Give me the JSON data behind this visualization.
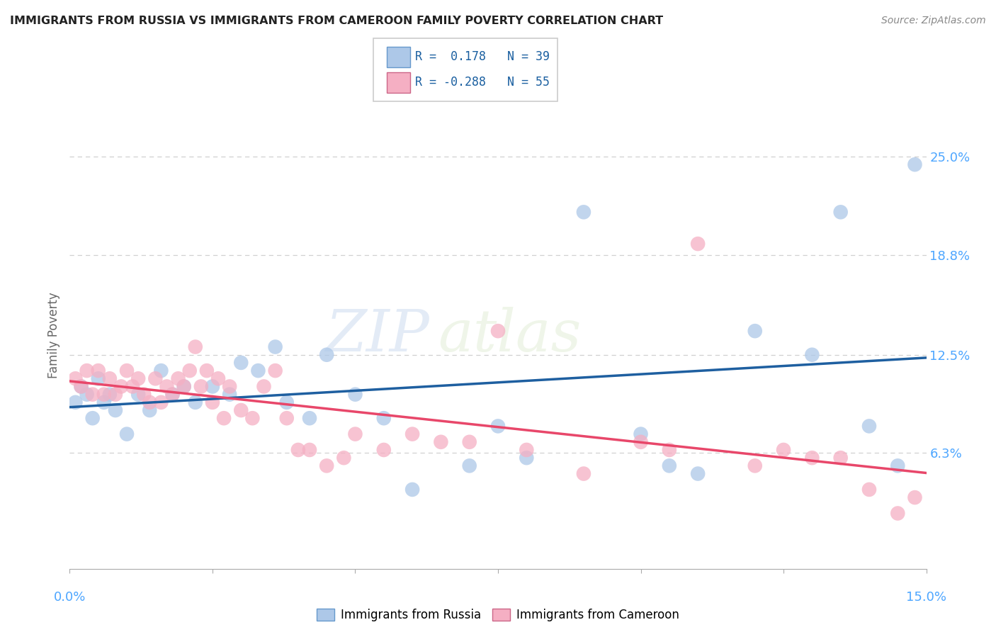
{
  "title": "IMMIGRANTS FROM RUSSIA VS IMMIGRANTS FROM CAMEROON FAMILY POVERTY CORRELATION CHART",
  "source": "Source: ZipAtlas.com",
  "ylabel": "Family Poverty",
  "ytick_labels": [
    "25.0%",
    "18.8%",
    "12.5%",
    "6.3%"
  ],
  "ytick_values": [
    0.25,
    0.188,
    0.125,
    0.063
  ],
  "xlim": [
    0.0,
    0.15
  ],
  "ylim": [
    -0.01,
    0.285
  ],
  "russia_R": 0.178,
  "russia_N": 39,
  "cameroon_R": -0.288,
  "cameroon_N": 55,
  "russia_color": "#adc8e8",
  "cameroon_color": "#f5afc3",
  "russia_line_color": "#1e5fa0",
  "cameroon_line_color": "#e8476a",
  "legend_label_russia": "Immigrants from Russia",
  "legend_label_cameroon": "Immigrants from Cameroon",
  "russia_scatter_x": [
    0.001,
    0.002,
    0.003,
    0.004,
    0.005,
    0.006,
    0.007,
    0.008,
    0.01,
    0.012,
    0.014,
    0.016,
    0.018,
    0.02,
    0.022,
    0.025,
    0.028,
    0.03,
    0.033,
    0.036,
    0.038,
    0.042,
    0.045,
    0.05,
    0.055,
    0.06,
    0.07,
    0.075,
    0.08,
    0.09,
    0.1,
    0.105,
    0.11,
    0.12,
    0.13,
    0.135,
    0.14,
    0.145,
    0.148
  ],
  "russia_scatter_y": [
    0.095,
    0.105,
    0.1,
    0.085,
    0.11,
    0.095,
    0.1,
    0.09,
    0.075,
    0.1,
    0.09,
    0.115,
    0.1,
    0.105,
    0.095,
    0.105,
    0.1,
    0.12,
    0.115,
    0.13,
    0.095,
    0.085,
    0.125,
    0.1,
    0.085,
    0.04,
    0.055,
    0.08,
    0.06,
    0.215,
    0.075,
    0.055,
    0.05,
    0.14,
    0.125,
    0.215,
    0.08,
    0.055,
    0.245
  ],
  "cameroon_scatter_x": [
    0.001,
    0.002,
    0.003,
    0.004,
    0.005,
    0.006,
    0.007,
    0.008,
    0.009,
    0.01,
    0.011,
    0.012,
    0.013,
    0.014,
    0.015,
    0.016,
    0.017,
    0.018,
    0.019,
    0.02,
    0.021,
    0.022,
    0.023,
    0.024,
    0.025,
    0.026,
    0.027,
    0.028,
    0.03,
    0.032,
    0.034,
    0.036,
    0.038,
    0.04,
    0.042,
    0.045,
    0.048,
    0.05,
    0.055,
    0.06,
    0.065,
    0.07,
    0.075,
    0.08,
    0.09,
    0.1,
    0.105,
    0.11,
    0.12,
    0.125,
    0.13,
    0.135,
    0.14,
    0.145,
    0.148
  ],
  "cameroon_scatter_y": [
    0.11,
    0.105,
    0.115,
    0.1,
    0.115,
    0.1,
    0.11,
    0.1,
    0.105,
    0.115,
    0.105,
    0.11,
    0.1,
    0.095,
    0.11,
    0.095,
    0.105,
    0.1,
    0.11,
    0.105,
    0.115,
    0.13,
    0.105,
    0.115,
    0.095,
    0.11,
    0.085,
    0.105,
    0.09,
    0.085,
    0.105,
    0.115,
    0.085,
    0.065,
    0.065,
    0.055,
    0.06,
    0.075,
    0.065,
    0.075,
    0.07,
    0.07,
    0.14,
    0.065,
    0.05,
    0.07,
    0.065,
    0.195,
    0.055,
    0.065,
    0.06,
    0.06,
    0.04,
    0.025,
    0.035
  ],
  "watermark_zip": "ZIP",
  "watermark_atlas": "atlas",
  "background_color": "#ffffff",
  "grid_color": "#d0d0d0"
}
